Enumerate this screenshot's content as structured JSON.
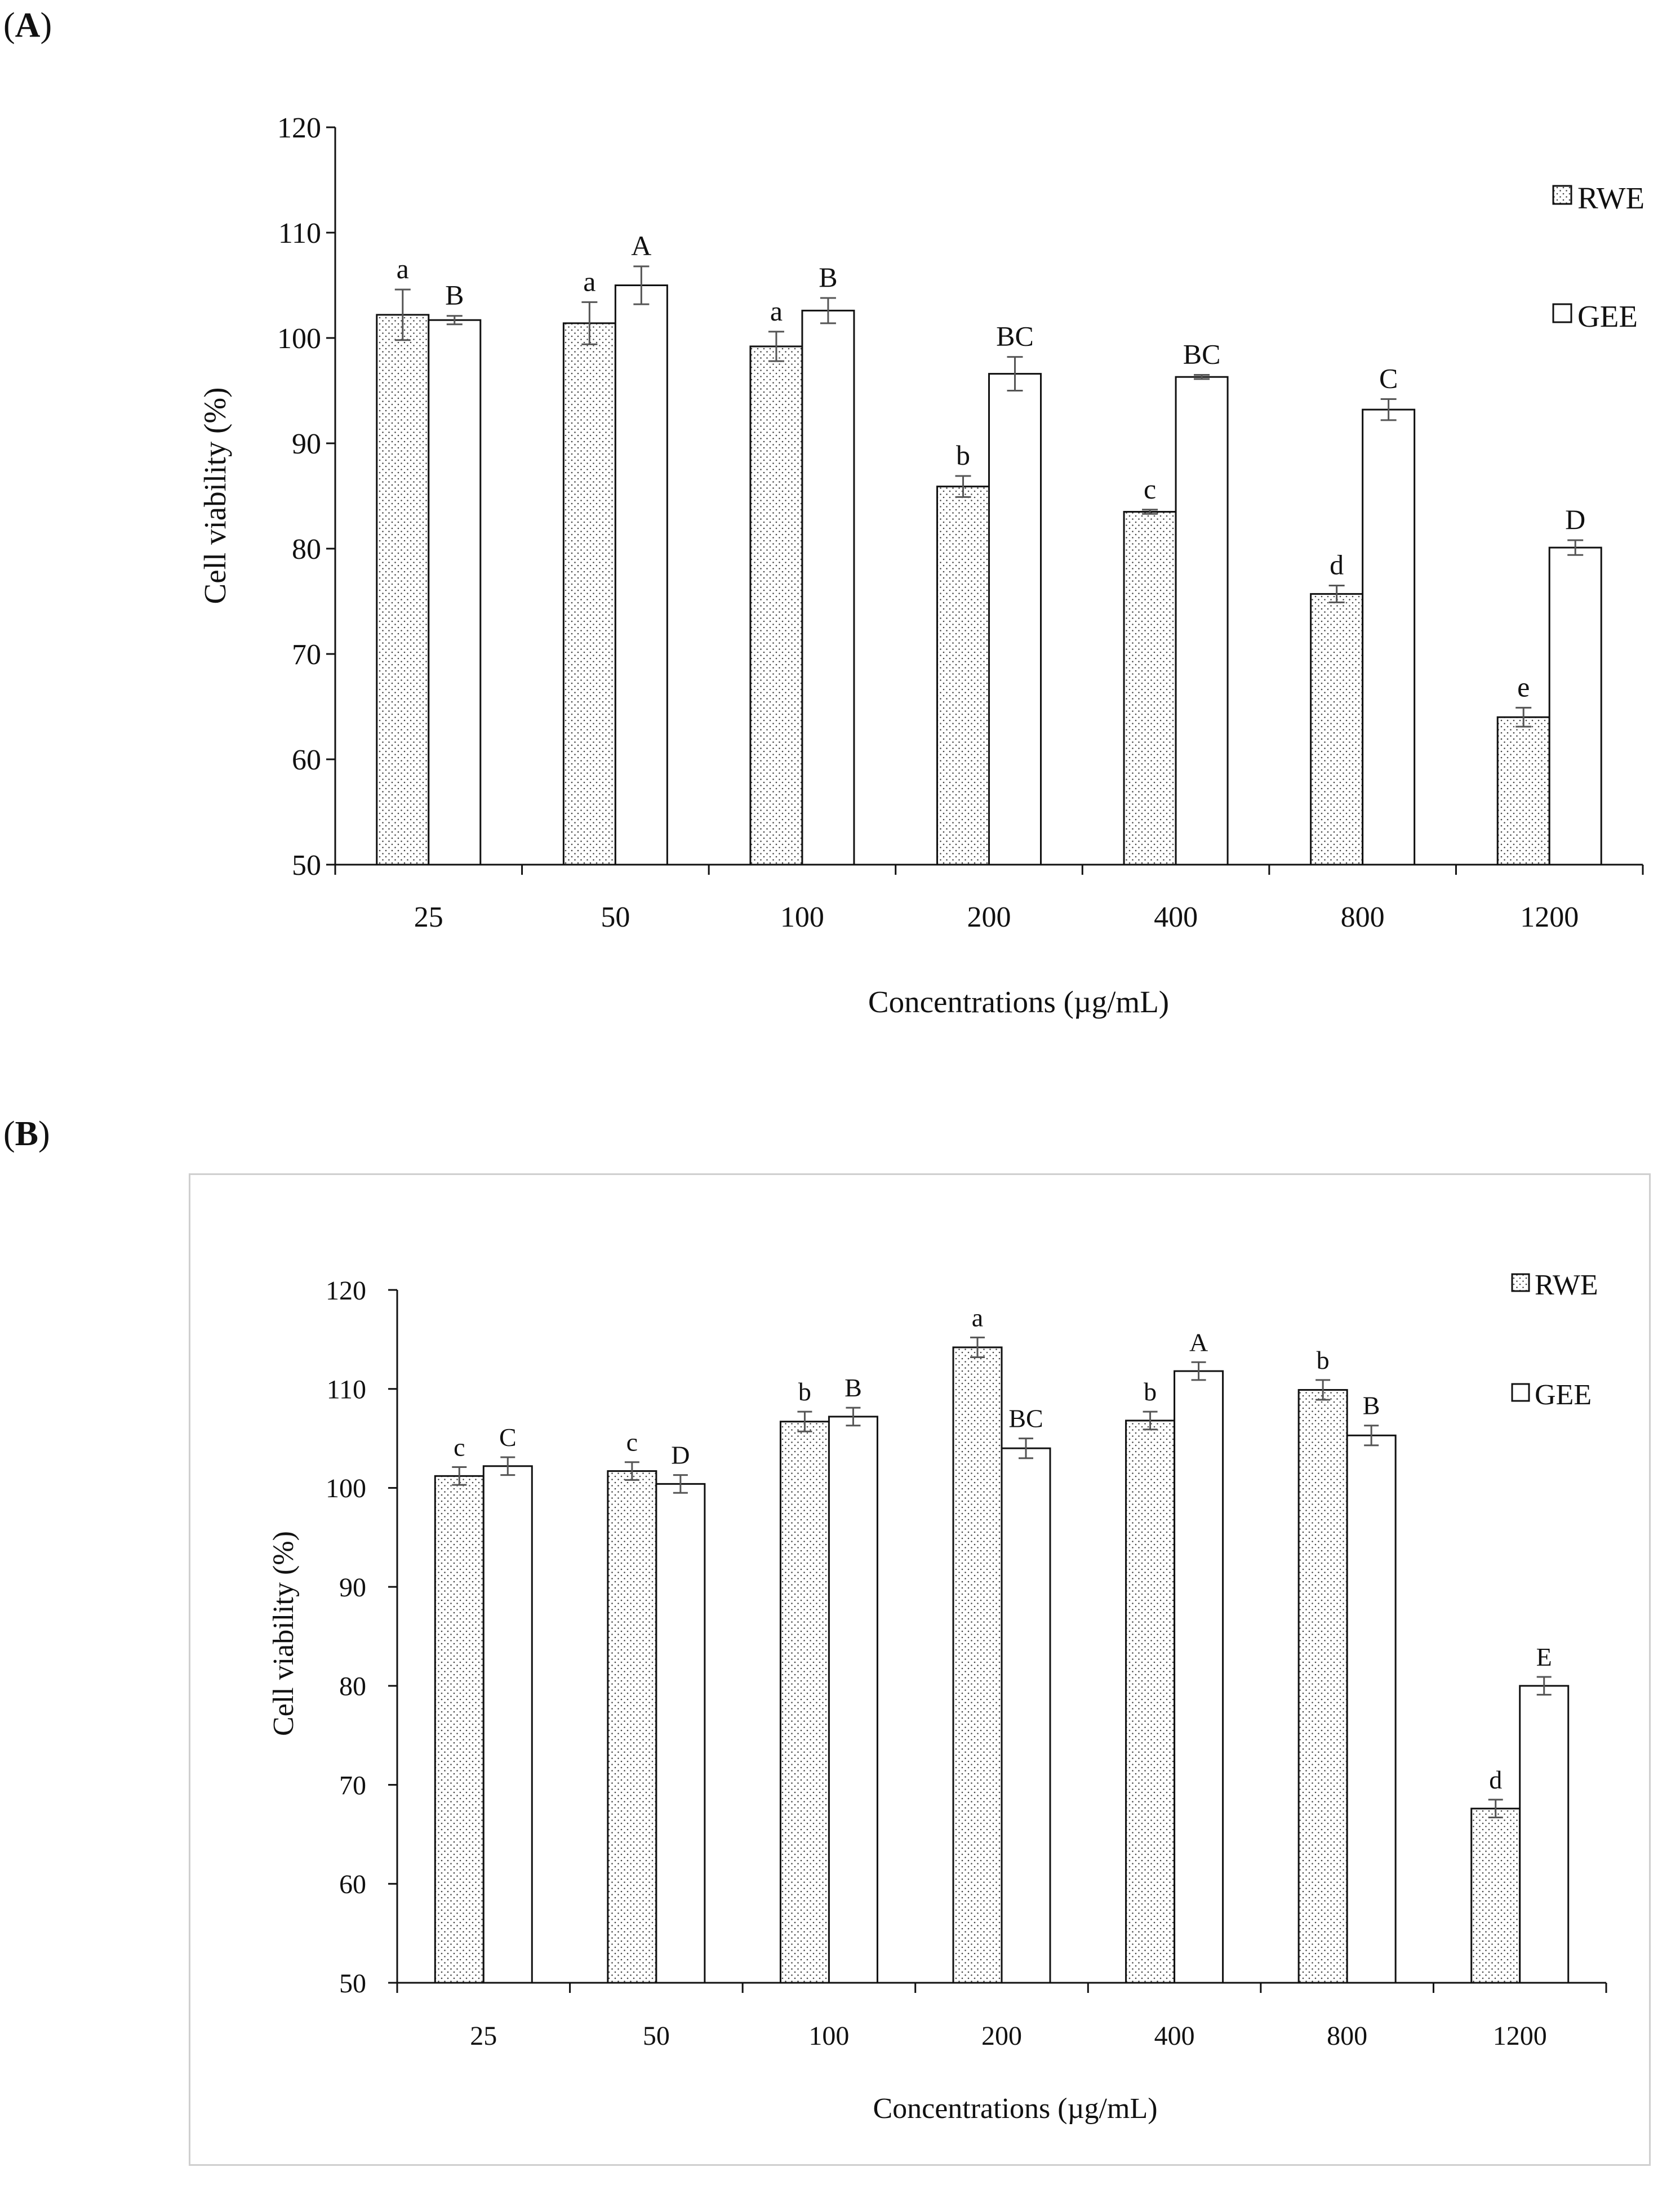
{
  "chart_data": [
    {
      "panel": "A",
      "type": "bar",
      "ylabel": "Cell viability  (%)",
      "xlabel": "Concentrations (µg/mL)",
      "ylim": [
        50,
        120
      ],
      "yticks": [
        "50",
        "60",
        "70",
        "80",
        "90",
        "100",
        "110",
        "120"
      ],
      "categories": [
        "25",
        "50",
        "100",
        "200",
        "400",
        "800",
        "1200"
      ],
      "legend_position": "right",
      "series": [
        {
          "name": "RWE",
          "pattern": "dotted",
          "values": [
            102.2,
            101.4,
            99.2,
            85.9,
            83.5,
            75.7,
            64.0
          ],
          "errors": [
            2.4,
            2.0,
            1.4,
            1.0,
            0.2,
            0.8,
            0.9
          ],
          "letters": [
            "a",
            "a",
            "a",
            "b",
            "c",
            "d",
            "e"
          ]
        },
        {
          "name": "GEE",
          "pattern": "open",
          "values": [
            101.7,
            105.0,
            102.6,
            96.6,
            96.3,
            93.2,
            80.1
          ],
          "errors": [
            0.4,
            1.8,
            1.2,
            1.6,
            0.2,
            1.0,
            0.7
          ],
          "letters": [
            "B",
            "A",
            "B",
            "BC",
            "BC",
            "C",
            "D"
          ]
        }
      ]
    },
    {
      "panel": "B",
      "type": "bar",
      "ylabel": "Cell viability  (%)",
      "xlabel": "Concentrations (µg/mL)",
      "ylim": [
        50,
        120
      ],
      "yticks": [
        "50",
        "60",
        "70",
        "80",
        "90",
        "100",
        "110",
        "120"
      ],
      "categories": [
        "25",
        "50",
        "100",
        "200",
        "400",
        "800",
        "1200"
      ],
      "legend_position": "top-right",
      "series": [
        {
          "name": "RWE",
          "pattern": "dotted",
          "values": [
            101.2,
            101.7,
            106.7,
            114.2,
            106.8,
            109.9,
            67.6
          ],
          "errors": [
            0.9,
            0.9,
            1.0,
            1.0,
            0.9,
            1.0,
            0.9
          ],
          "letters": [
            "c",
            "c",
            "b",
            "a",
            "b",
            "b",
            "d"
          ]
        },
        {
          "name": "GEE",
          "pattern": "open",
          "values": [
            102.2,
            100.4,
            107.2,
            104.0,
            111.8,
            105.3,
            80.0
          ],
          "errors": [
            0.9,
            0.9,
            0.9,
            1.0,
            0.9,
            1.0,
            0.9
          ],
          "letters": [
            "C",
            "D",
            "B",
            "BC",
            "A",
            "B",
            "E"
          ]
        }
      ]
    }
  ],
  "panels": {
    "a": "A",
    "b": "B"
  },
  "colors": {
    "axis": "#111111",
    "bar_fill": "#ffffff",
    "error": "#555555",
    "dots": "#444444"
  }
}
